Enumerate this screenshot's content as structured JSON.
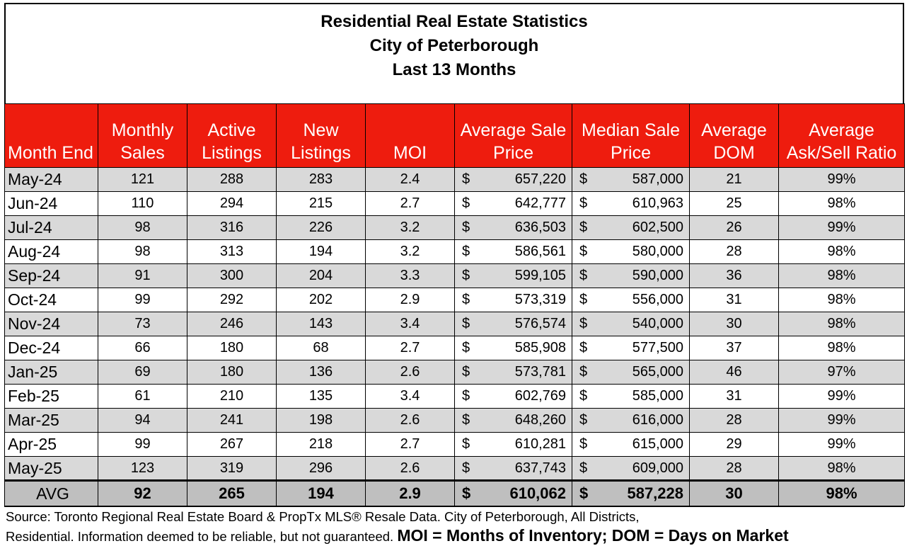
{
  "title": {
    "line1": "Residential Real Estate Statistics",
    "line2": "City of Peterborough",
    "line3": "Last 13 Months"
  },
  "headers": {
    "month_end": "Month End",
    "monthly_sales": [
      "Monthly",
      "Sales"
    ],
    "active_listings": [
      "Active",
      "Listings"
    ],
    "new_listings": [
      "New",
      "Listings"
    ],
    "moi": "MOI",
    "avg_sale_price": [
      "Average Sale",
      "Price"
    ],
    "median_sale_price": [
      "Median Sale",
      "Price"
    ],
    "avg_dom": [
      "Average",
      "DOM"
    ],
    "ask_sell": [
      "Average",
      "Ask/Sell Ratio"
    ]
  },
  "rows": [
    {
      "month": "May-24",
      "sales": "121",
      "active": "288",
      "new": "283",
      "moi": "2.4",
      "avg_price": "657,220",
      "median_price": "587,000",
      "dom": "21",
      "ratio": "99%"
    },
    {
      "month": "Jun-24",
      "sales": "110",
      "active": "294",
      "new": "215",
      "moi": "2.7",
      "avg_price": "642,777",
      "median_price": "610,963",
      "dom": "25",
      "ratio": "98%"
    },
    {
      "month": "Jul-24",
      "sales": "98",
      "active": "316",
      "new": "226",
      "moi": "3.2",
      "avg_price": "636,503",
      "median_price": "602,500",
      "dom": "26",
      "ratio": "99%"
    },
    {
      "month": "Aug-24",
      "sales": "98",
      "active": "313",
      "new": "194",
      "moi": "3.2",
      "avg_price": "586,561",
      "median_price": "580,000",
      "dom": "28",
      "ratio": "98%"
    },
    {
      "month": "Sep-24",
      "sales": "91",
      "active": "300",
      "new": "204",
      "moi": "3.3",
      "avg_price": "599,105",
      "median_price": "590,000",
      "dom": "36",
      "ratio": "98%"
    },
    {
      "month": "Oct-24",
      "sales": "99",
      "active": "292",
      "new": "202",
      "moi": "2.9",
      "avg_price": "573,319",
      "median_price": "556,000",
      "dom": "31",
      "ratio": "98%"
    },
    {
      "month": "Nov-24",
      "sales": "73",
      "active": "246",
      "new": "143",
      "moi": "3.4",
      "avg_price": "576,574",
      "median_price": "540,000",
      "dom": "30",
      "ratio": "98%"
    },
    {
      "month": "Dec-24",
      "sales": "66",
      "active": "180",
      "new": "68",
      "moi": "2.7",
      "avg_price": "585,908",
      "median_price": "577,500",
      "dom": "37",
      "ratio": "98%"
    },
    {
      "month": "Jan-25",
      "sales": "69",
      "active": "180",
      "new": "136",
      "moi": "2.6",
      "avg_price": "573,781",
      "median_price": "565,000",
      "dom": "46",
      "ratio": "97%"
    },
    {
      "month": "Feb-25",
      "sales": "61",
      "active": "210",
      "new": "135",
      "moi": "3.4",
      "avg_price": "602,769",
      "median_price": "585,000",
      "dom": "31",
      "ratio": "99%"
    },
    {
      "month": "Mar-25",
      "sales": "94",
      "active": "241",
      "new": "198",
      "moi": "2.6",
      "avg_price": "648,260",
      "median_price": "616,000",
      "dom": "28",
      "ratio": "99%"
    },
    {
      "month": "Apr-25",
      "sales": "99",
      "active": "267",
      "new": "218",
      "moi": "2.7",
      "avg_price": "610,281",
      "median_price": "615,000",
      "dom": "29",
      "ratio": "99%"
    },
    {
      "month": "May-25",
      "sales": "123",
      "active": "319",
      "new": "296",
      "moi": "2.6",
      "avg_price": "637,743",
      "median_price": "609,000",
      "dom": "28",
      "ratio": "98%"
    }
  ],
  "average_row": {
    "label": "AVG",
    "sales": "92",
    "active": "265",
    "new": "194",
    "moi": "2.9",
    "avg_price": "610,062",
    "median_price": "587,228",
    "dom": "30",
    "ratio": "98%"
  },
  "currency_symbol": "$",
  "footer": {
    "source_line1": "Source: Toronto Regional Real Estate Board & PropTx MLS® Resale Data. City of Peterborough, All Districts,",
    "source_line2": "Residential.  Information deemed to be reliable, but not guaranteed.",
    "legend": "MOI = Months of Inventory; DOM = Days on Market"
  },
  "colors": {
    "header_bg": "#ee1c0e",
    "header_text": "#ffffff",
    "row_shade": "#d9d9d9",
    "avg_row_bg": "#bfbfbf"
  }
}
